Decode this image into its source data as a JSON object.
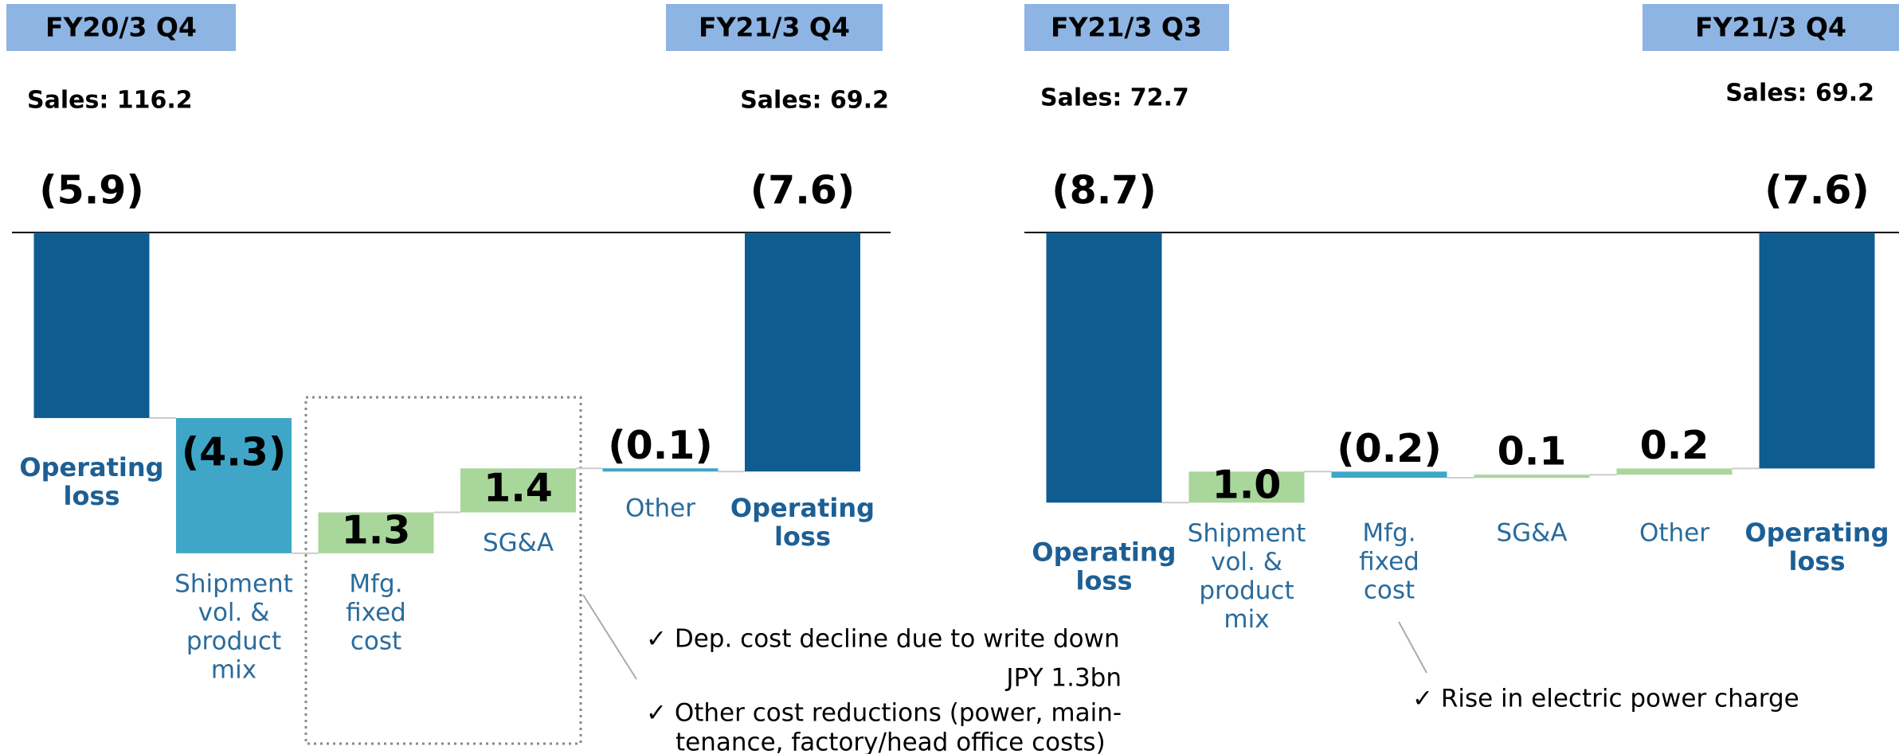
{
  "chart_data": [
    {
      "type": "waterfall",
      "start_label": "FY20/3 Q4",
      "end_label": "FY21/3 Q4",
      "start_sales": "Sales:  116.2",
      "end_sales": "Sales:  69.2",
      "categories": [
        [
          "Operating",
          "loss"
        ],
        [
          "Shipment",
          "vol. &",
          "product",
          "mix"
        ],
        [
          "Mfg.",
          "fixed",
          "cost"
        ],
        [
          "SG&A"
        ],
        [
          "Other"
        ],
        [
          "Operating",
          "loss"
        ]
      ],
      "measure": [
        "total",
        "relative",
        "relative",
        "relative",
        "relative",
        "total"
      ],
      "values": [
        -5.9,
        -4.3,
        1.3,
        1.4,
        -0.1,
        -7.6
      ],
      "value_labels": [
        "(5.9)",
        "(4.3)",
        "1.3",
        "1.4",
        "(0.1)",
        "(7.6)"
      ],
      "total_color": "#0f5c91",
      "decrease_color": "#3fa6c8",
      "increase_color": "#a9d69b",
      "annotations": [
        "✓ Dep. cost decline due to write down",
        "JPY 1.3bn",
        "✓ Other cost reductions (power, main-",
        "tenance, factory/head office costs)"
      ]
    },
    {
      "type": "waterfall",
      "start_label": "FY21/3 Q3",
      "end_label": "FY21/3  Q4",
      "start_sales": "Sales:  72.7",
      "end_sales": "Sales:  69.2",
      "categories": [
        [
          "Operating",
          "loss"
        ],
        [
          "Shipment",
          "vol. &",
          "product",
          "mix"
        ],
        [
          "Mfg.",
          "fixed",
          "cost"
        ],
        [
          "SG&A"
        ],
        [
          "Other"
        ],
        [
          "Operating",
          "loss"
        ]
      ],
      "measure": [
        "total",
        "relative",
        "relative",
        "relative",
        "relative",
        "total"
      ],
      "values": [
        -8.7,
        1.0,
        -0.2,
        0.1,
        0.2,
        -7.6
      ],
      "value_labels": [
        "(8.7)",
        "1.0",
        "(0.2)",
        "0.1",
        "0.2",
        "(7.6)"
      ],
      "total_color": "#0f5c91",
      "decrease_color": "#3fa6c8",
      "increase_color": "#a9d69b",
      "annotations": [
        "✓ Rise in electric power charge"
      ]
    }
  ]
}
